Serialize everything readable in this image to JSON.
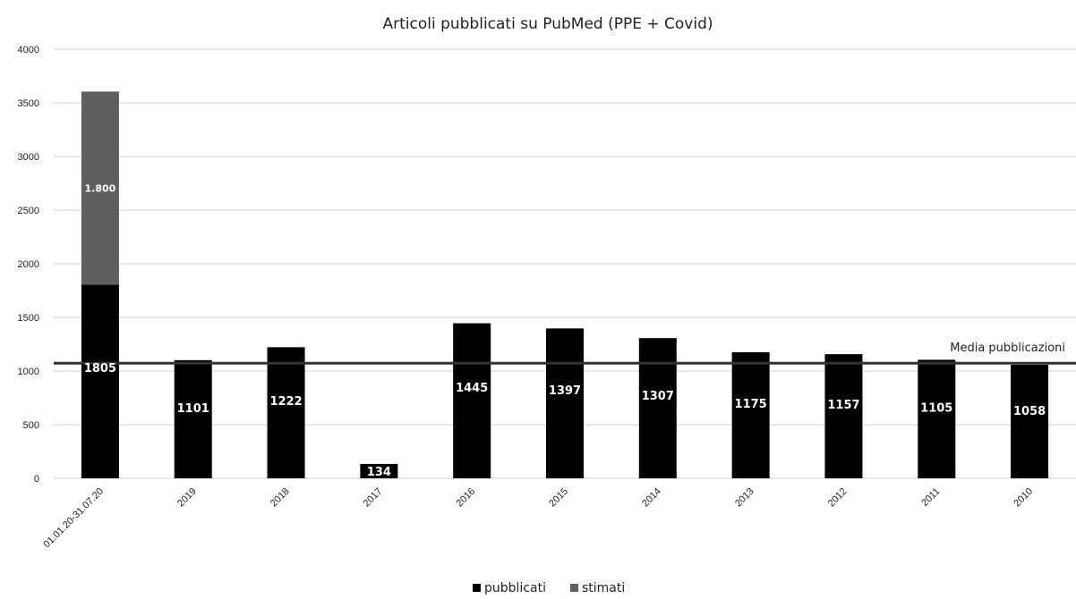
{
  "chart_data": {
    "type": "bar",
    "stacked": true,
    "title": "Articoli pubblicati su PubMed (PPE + Covid)",
    "categories": [
      "01.01.20-31.07.20",
      "2019",
      "2018",
      "2017",
      "2016",
      "2015",
      "2014",
      "2013",
      "2012",
      "2011",
      "2010"
    ],
    "series": [
      {
        "name": "pubblicati",
        "color": "#000000",
        "values": [
          1805,
          1101,
          1222,
          134,
          1445,
          1397,
          1307,
          1175,
          1157,
          1105,
          1058
        ],
        "labels": [
          "1805",
          "1101",
          "1222",
          "134",
          "1445",
          "1397",
          "1307",
          "1175",
          "1157",
          "1105",
          "1058"
        ]
      },
      {
        "name": "stimati",
        "color": "#5f5f5f",
        "values": [
          1800,
          null,
          null,
          null,
          null,
          null,
          null,
          null,
          null,
          null,
          null
        ],
        "labels": [
          "1.800",
          "",
          "",
          "",
          "",
          "",
          "",
          "",
          "",
          "",
          ""
        ]
      }
    ],
    "reference_line": {
      "label": "Media pubblicazioni",
      "value": 1073
    },
    "ylim": [
      0,
      4000
    ],
    "yticks": [
      0,
      500,
      1000,
      1500,
      2000,
      2500,
      3000,
      3500,
      4000
    ],
    "grid": true,
    "legend": "bottom-center",
    "xlabel": "",
    "ylabel": ""
  }
}
